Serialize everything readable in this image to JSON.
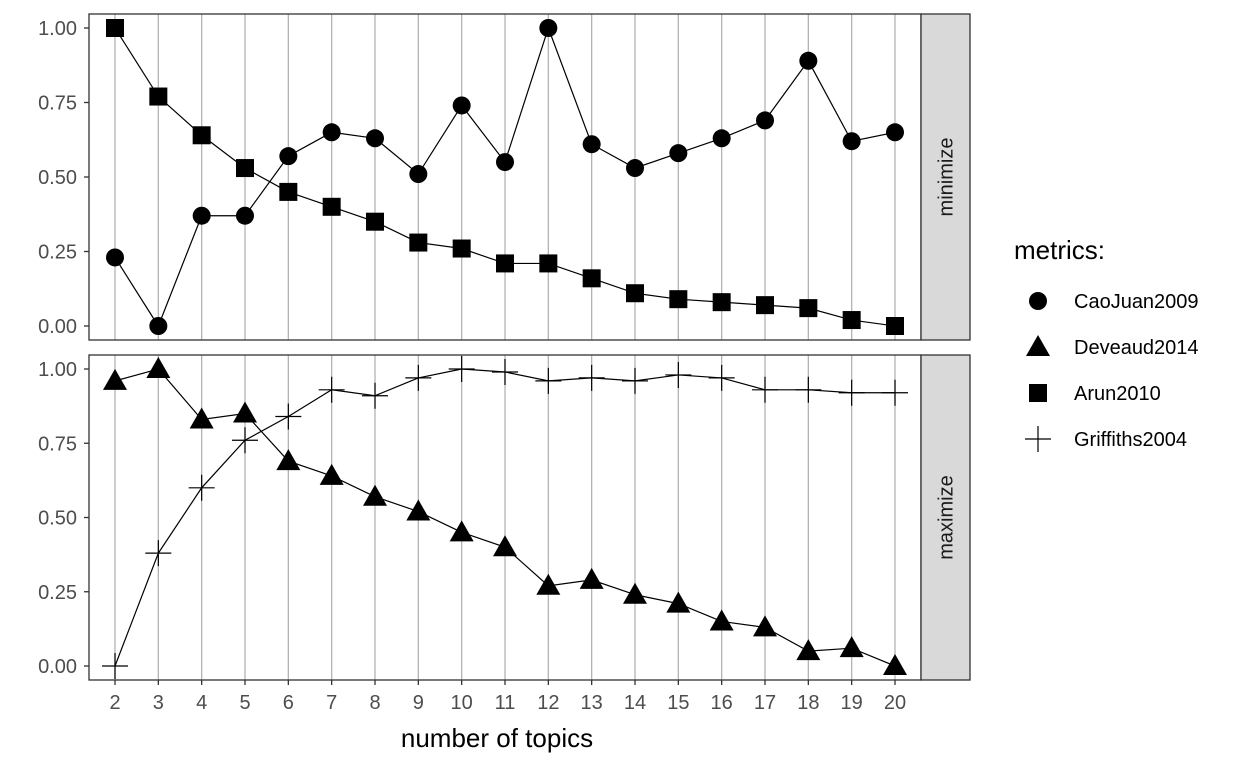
{
  "chart_data": {
    "type": "line",
    "xlabel": "number of topics",
    "x": [
      2,
      3,
      4,
      5,
      6,
      7,
      8,
      9,
      10,
      11,
      12,
      13,
      14,
      15,
      16,
      17,
      18,
      19,
      20
    ],
    "ylim": [
      0,
      1
    ],
    "yticks": [
      "0.00",
      "0.25",
      "0.50",
      "0.75",
      "1.00"
    ],
    "grid": "vertical major lines at each x",
    "legend_title": "metrics:",
    "legend_position": "right",
    "legend": [
      {
        "name": "CaoJuan2009",
        "shape": "circle"
      },
      {
        "name": "Deveaud2014",
        "shape": "triangle"
      },
      {
        "name": "Arun2010",
        "shape": "square"
      },
      {
        "name": "Griffiths2004",
        "shape": "cross"
      }
    ],
    "panels": [
      {
        "strip": "minimize",
        "series": [
          {
            "name": "CaoJuan2009",
            "shape": "circle",
            "values": [
              0.23,
              0.0,
              0.37,
              0.37,
              0.57,
              0.65,
              0.63,
              0.51,
              0.74,
              0.55,
              1.0,
              0.61,
              0.53,
              0.58,
              0.63,
              0.69,
              0.89,
              0.62,
              0.65
            ]
          },
          {
            "name": "Arun2010",
            "shape": "square",
            "values": [
              1.0,
              0.77,
              0.64,
              0.53,
              0.45,
              0.4,
              0.35,
              0.28,
              0.26,
              0.21,
              0.21,
              0.16,
              0.11,
              0.09,
              0.08,
              0.07,
              0.06,
              0.02,
              0.0
            ]
          }
        ]
      },
      {
        "strip": "maximize",
        "series": [
          {
            "name": "Deveaud2014",
            "shape": "triangle",
            "values": [
              0.96,
              1.0,
              0.83,
              0.85,
              0.69,
              0.64,
              0.57,
              0.52,
              0.45,
              0.4,
              0.27,
              0.29,
              0.24,
              0.21,
              0.15,
              0.13,
              0.05,
              0.06,
              0.0
            ]
          },
          {
            "name": "Griffiths2004",
            "shape": "cross",
            "values": [
              0.0,
              0.38,
              0.6,
              0.76,
              0.84,
              0.93,
              0.91,
              0.97,
              1.0,
              0.99,
              0.96,
              0.97,
              0.96,
              0.98,
              0.97,
              0.93,
              0.93,
              0.92,
              0.92
            ]
          }
        ]
      }
    ]
  }
}
